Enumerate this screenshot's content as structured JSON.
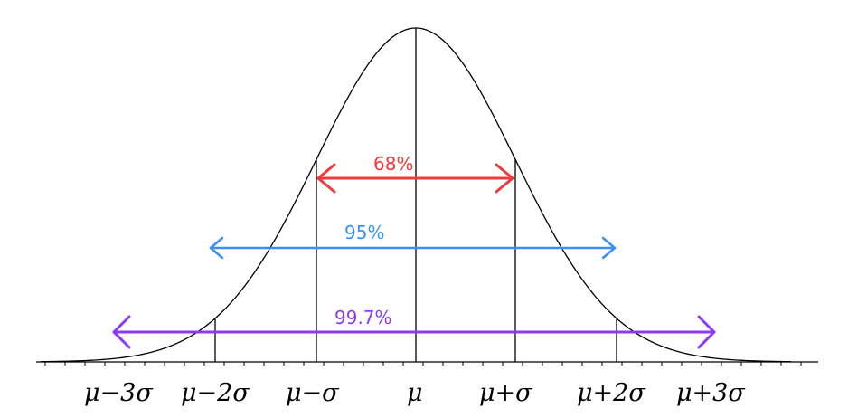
{
  "diagram": {
    "curve_color": "#000000",
    "axis_color": "#000000",
    "tick_labels": [
      "μ−3σ",
      "μ−2σ",
      "μ−σ",
      "μ",
      "μ+σ",
      "μ+2σ",
      "μ+3σ"
    ],
    "ranges": [
      {
        "label": "68%",
        "color": "#ef3b3b"
      },
      {
        "label": "95%",
        "color": "#3b8ff0"
      },
      {
        "label": "99.7%",
        "color": "#8a3cf0"
      }
    ]
  }
}
